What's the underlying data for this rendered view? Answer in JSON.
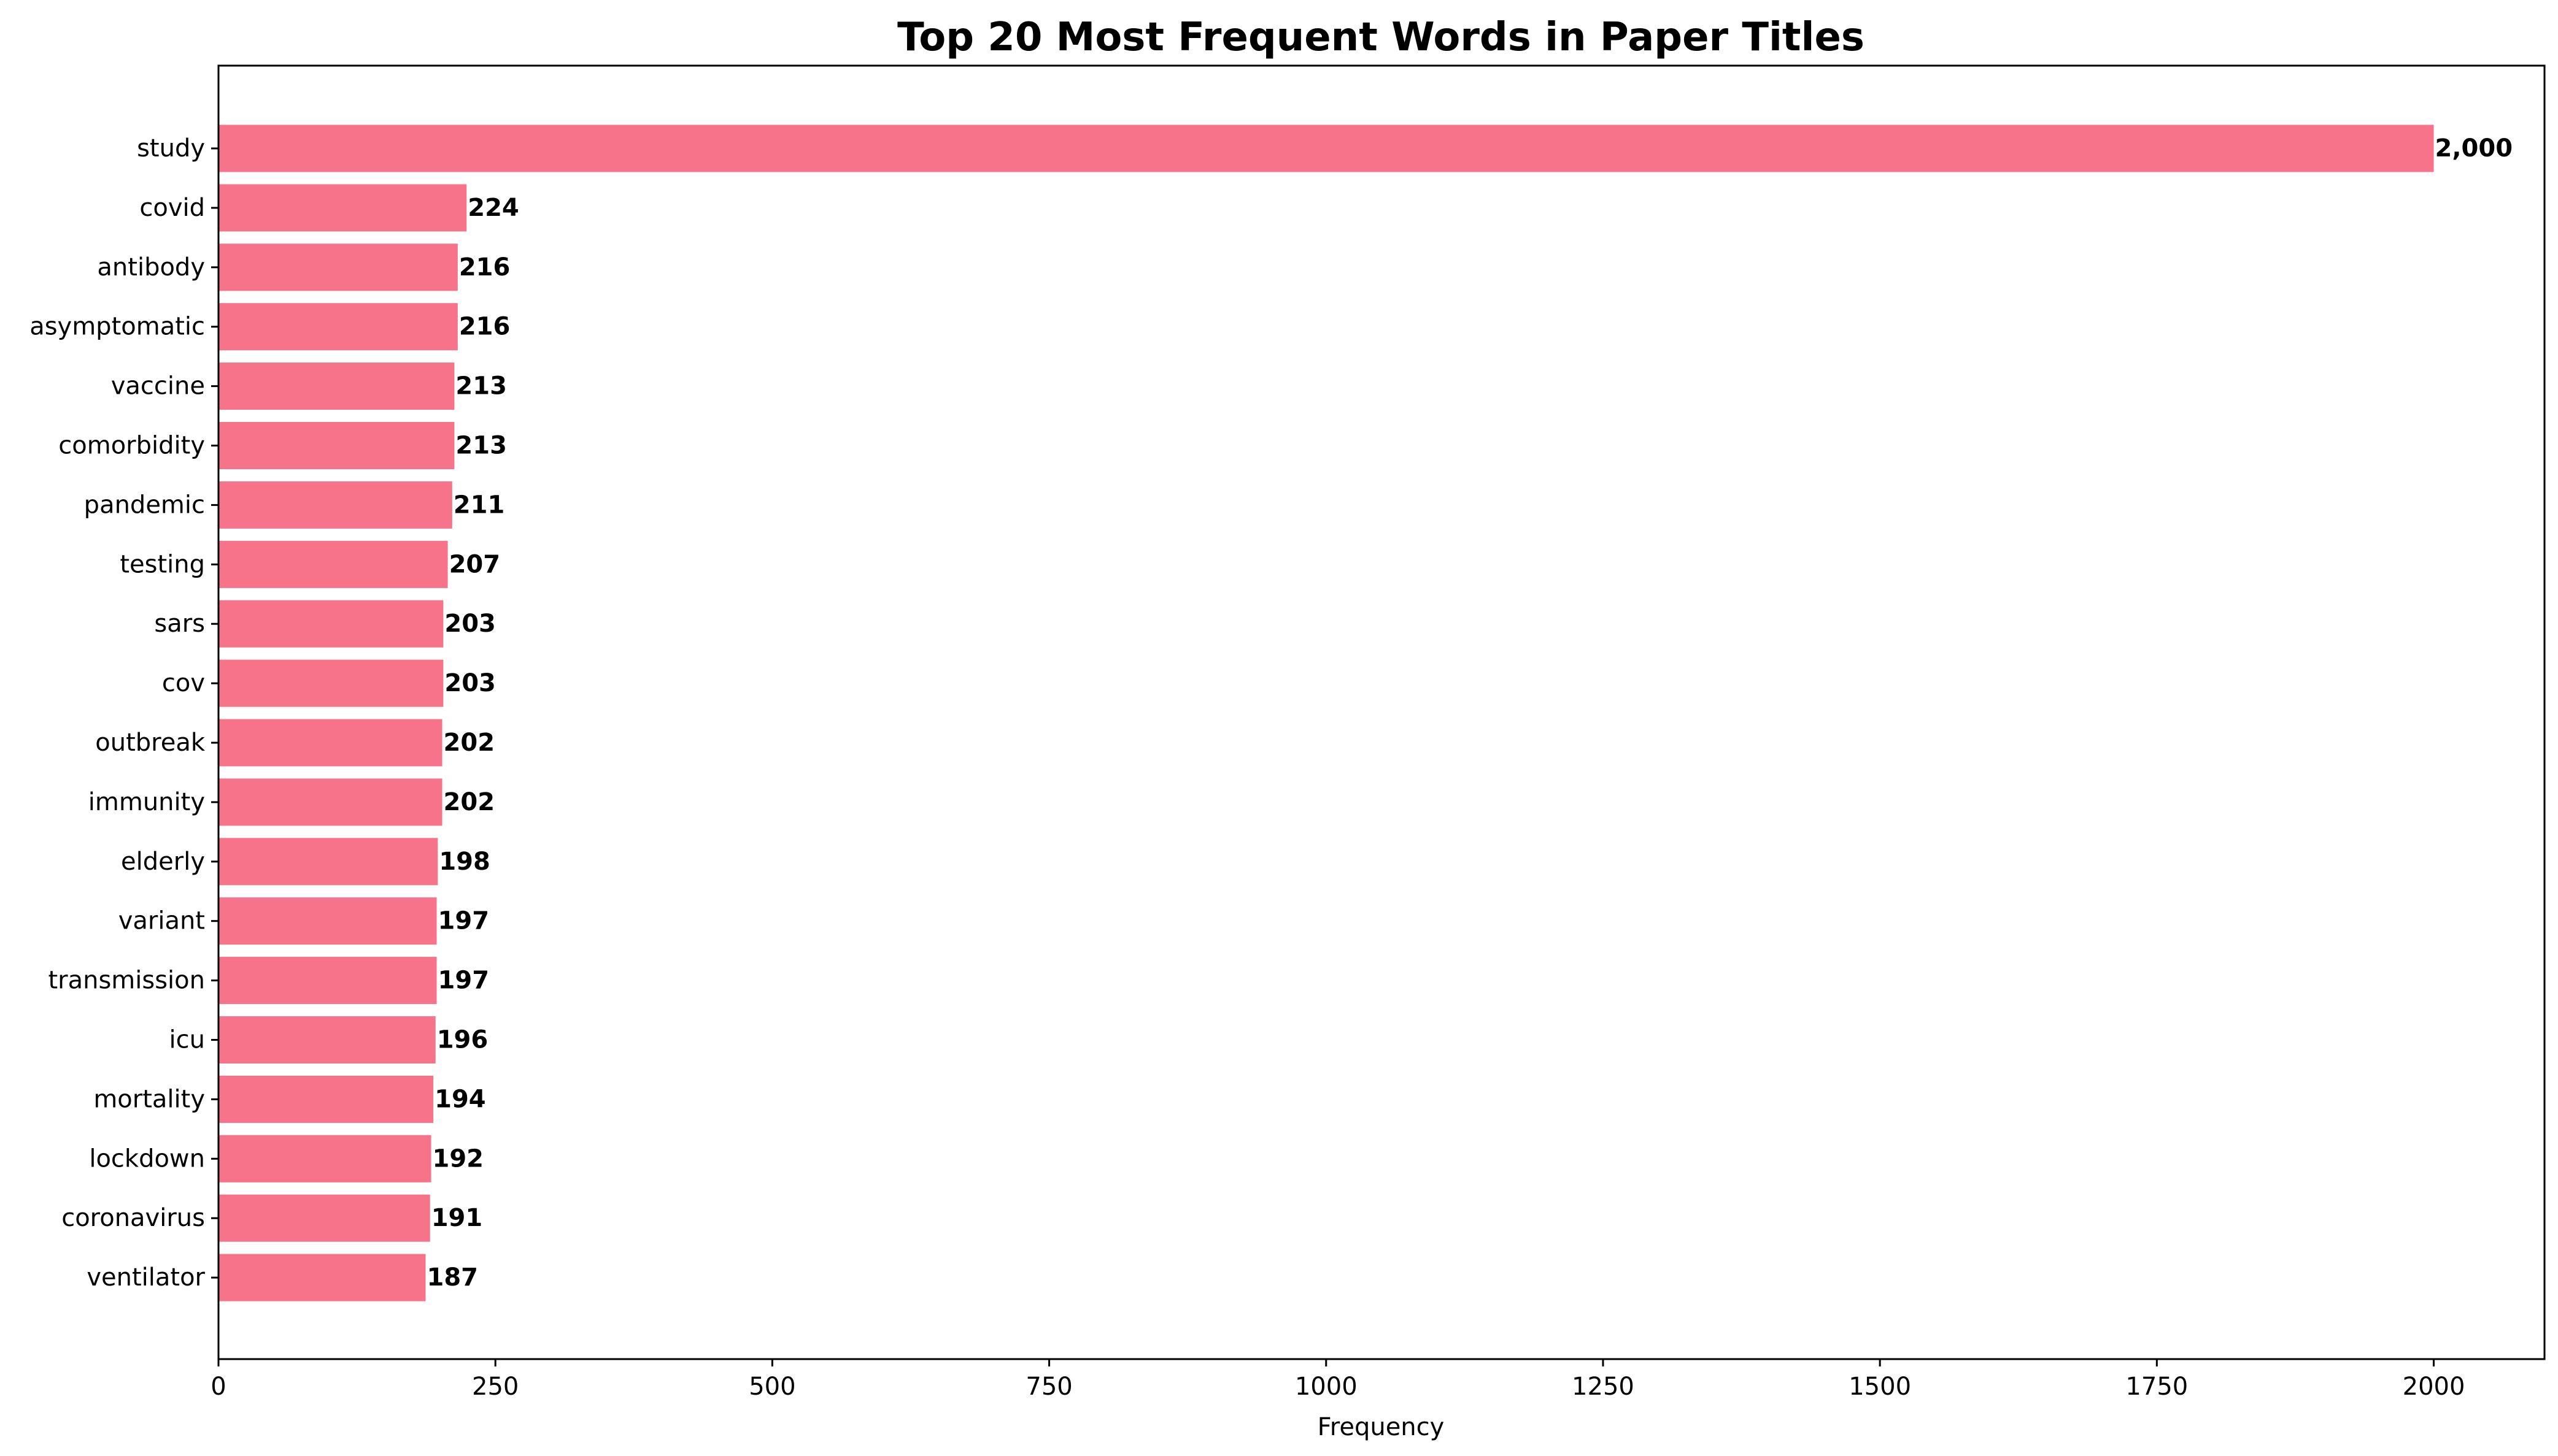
{
  "chart_data": {
    "type": "bar",
    "orientation": "horizontal",
    "title": "Top 20 Most Frequent Words in Paper Titles",
    "xlabel": "Frequency",
    "ylabel": "",
    "xlim": [
      0,
      2100
    ],
    "xticks": [
      0,
      250,
      500,
      750,
      1000,
      1250,
      1500,
      1750,
      2000
    ],
    "grid": false,
    "bar_color": "#f7738a",
    "categories": [
      "study",
      "covid",
      "antibody",
      "asymptomatic",
      "vaccine",
      "comorbidity",
      "pandemic",
      "testing",
      "sars",
      "cov",
      "outbreak",
      "immunity",
      "elderly",
      "variant",
      "transmission",
      "icu",
      "mortality",
      "lockdown",
      "coronavirus",
      "ventilator"
    ],
    "values": [
      2000,
      224,
      216,
      216,
      213,
      213,
      211,
      207,
      203,
      203,
      202,
      202,
      198,
      197,
      197,
      196,
      194,
      192,
      191,
      187
    ],
    "data_labels": [
      "2,000",
      "224",
      "216",
      "216",
      "213",
      "213",
      "211",
      "207",
      "203",
      "203",
      "202",
      "202",
      "198",
      "197",
      "197",
      "196",
      "194",
      "192",
      "191",
      "187"
    ]
  }
}
